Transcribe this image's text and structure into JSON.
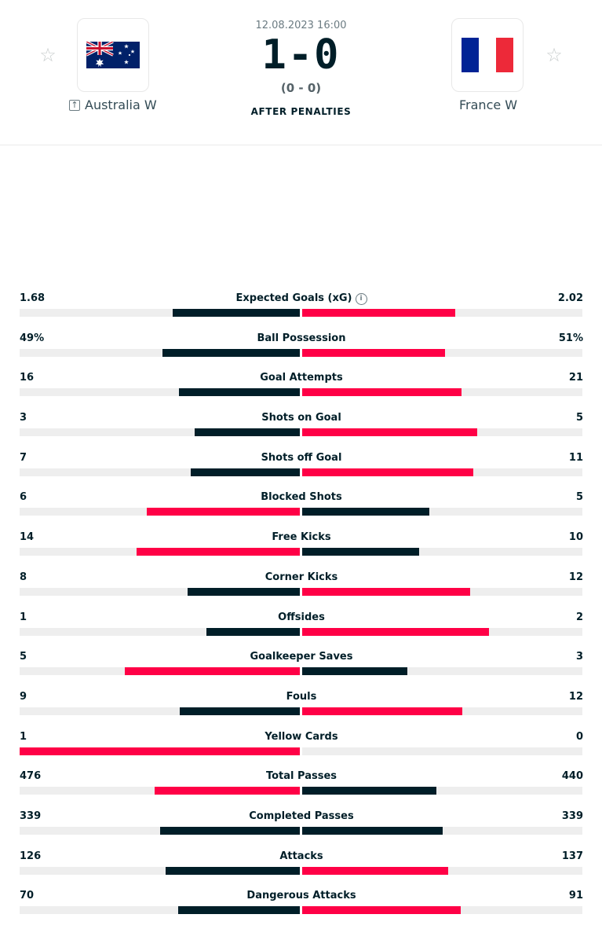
{
  "match": {
    "datetime": "12.08.2023 16:00",
    "score": "1-0",
    "halftime": "(0 - 0)",
    "status": "AFTER PENALTIES",
    "home": {
      "name": "Australia W",
      "star_icon": "star-outline-icon"
    },
    "away": {
      "name": "France W",
      "star_icon": "star-outline-icon"
    }
  },
  "colors": {
    "winner": "#ff0046",
    "loser": "#001e28",
    "track": "#eeeeee"
  },
  "stats": [
    {
      "label": "Expected Goals (xG)",
      "home": "1.68",
      "away": "2.02",
      "info_icon": true
    },
    {
      "label": "Ball Possession",
      "home": "49%",
      "away": "51%"
    },
    {
      "label": "Goal Attempts",
      "home": "16",
      "away": "21"
    },
    {
      "label": "Shots on Goal",
      "home": "3",
      "away": "5"
    },
    {
      "label": "Shots off Goal",
      "home": "7",
      "away": "11"
    },
    {
      "label": "Blocked Shots",
      "home": "6",
      "away": "5"
    },
    {
      "label": "Free Kicks",
      "home": "14",
      "away": "10"
    },
    {
      "label": "Corner Kicks",
      "home": "8",
      "away": "12"
    },
    {
      "label": "Offsides",
      "home": "1",
      "away": "2"
    },
    {
      "label": "Goalkeeper Saves",
      "home": "5",
      "away": "3"
    },
    {
      "label": "Fouls",
      "home": "9",
      "away": "12"
    },
    {
      "label": "Yellow Cards",
      "home": "1",
      "away": "0"
    },
    {
      "label": "Total Passes",
      "home": "476",
      "away": "440"
    },
    {
      "label": "Completed Passes",
      "home": "339",
      "away": "339"
    },
    {
      "label": "Attacks",
      "home": "126",
      "away": "137"
    },
    {
      "label": "Dangerous Attacks",
      "home": "70",
      "away": "91"
    }
  ]
}
